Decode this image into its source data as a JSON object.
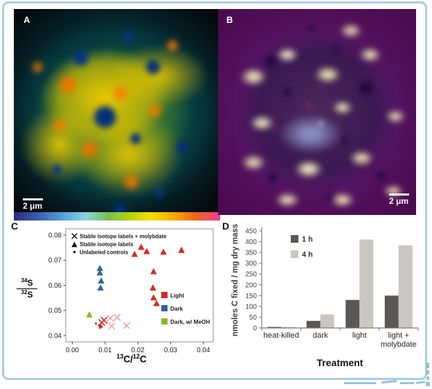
{
  "figure": {
    "panel_a": {
      "label": "A",
      "scalebar": "2 μm"
    },
    "panel_b": {
      "label": "B",
      "scalebar": "2 μm"
    },
    "panel_c": {
      "label": "C"
    },
    "panel_d": {
      "label": "D"
    }
  },
  "colorbar": {
    "stops": [
      "#282c7a",
      "#3b5eb2",
      "#58a7dd",
      "#90d2e0",
      "#74c24b",
      "#b5d311",
      "#f2e204",
      "#f7a704",
      "#f0641a",
      "#ee3e95"
    ]
  },
  "chart_data": [
    {
      "id": "panel-c-scatter",
      "type": "scatter",
      "xlabel_parts": {
        "sup1": "13",
        "mid": "C/",
        "sup2": "12",
        "tail": "C"
      },
      "ylabel_parts": {
        "num_sup": "34",
        "num_base": "S",
        "den_sup": "32",
        "den_base": "S"
      },
      "xlim": [
        -0.002,
        0.043
      ],
      "ylim": [
        0.0375,
        0.0825
      ],
      "xticks": [
        0.0,
        0.01,
        0.02,
        0.03,
        0.04
      ],
      "yticks": [
        0.04,
        0.05,
        0.06,
        0.07,
        0.08
      ],
      "grid": false,
      "marker_legend": [
        {
          "marker": "x",
          "label": "Stable isotope labels + molybdate"
        },
        {
          "marker": "triangle",
          "label": "Stable isotope labels"
        },
        {
          "marker": "dot",
          "label": "Unlabeled controls"
        }
      ],
      "color_legend": [
        {
          "color": "#d62b20",
          "label": "Light"
        },
        {
          "color": "#33659c",
          "label": "Dark"
        },
        {
          "color": "#8cb827",
          "label": "Dark, w/ MeOH"
        }
      ],
      "series": [
        {
          "name": "Light - stable isotope labels",
          "marker": "triangle",
          "color": "#d62b20",
          "size": 5,
          "points": [
            [
              0.019,
              0.0724
            ],
            [
              0.021,
              0.0752
            ],
            [
              0.0227,
              0.0735
            ],
            [
              0.0278,
              0.0733
            ],
            [
              0.0333,
              0.074
            ],
            [
              0.0248,
              0.0655
            ],
            [
              0.0246,
              0.059
            ],
            [
              0.0248,
              0.0551
            ],
            [
              0.0257,
              0.0528
            ]
          ]
        },
        {
          "name": "Dark - stable isotope labels",
          "marker": "triangle",
          "color": "#33659c",
          "size": 5,
          "points": [
            [
              0.0084,
              0.0668
            ],
            [
              0.0084,
              0.065
            ],
            [
              0.0088,
              0.0618
            ],
            [
              0.0086,
              0.059
            ]
          ]
        },
        {
          "name": "Dark w/ MeOH - stable isotope labels",
          "marker": "triangle",
          "color": "#8cb827",
          "size": 5,
          "points": [
            [
              0.0052,
              0.0483
            ]
          ]
        },
        {
          "name": "Light + molybdate",
          "marker": "x",
          "color": "#d62b20",
          "size": 4.2,
          "points": [
            [
              0.009,
              0.0452
            ],
            [
              0.0097,
              0.0461
            ]
          ]
        },
        {
          "name": "Light + molybdate (faded)",
          "marker": "x",
          "color": "#f2a49e",
          "size": 4.2,
          "points": [
            [
              0.0116,
              0.047
            ],
            [
              0.0137,
              0.0472
            ],
            [
              0.012,
              0.0438
            ],
            [
              0.0166,
              0.044
            ]
          ]
        },
        {
          "name": "Unlabeled control - dark",
          "marker": "dot",
          "color": "#33659c",
          "size": 1.6,
          "points": [
            [
              0.0072,
              0.0448
            ]
          ]
        },
        {
          "name": "Unlabeled controls - light",
          "marker": "dot",
          "color": "#d62b20",
          "size": 1.9,
          "points": [
            [
              0.0082,
              0.0441
            ],
            [
              0.0085,
              0.0432
            ]
          ]
        },
        {
          "name": "Light small triangle",
          "marker": "triangle",
          "color": "#d62b20",
          "size": 3,
          "points": [
            [
              0.0088,
              0.0438
            ]
          ]
        }
      ]
    },
    {
      "id": "panel-d-bars",
      "type": "bar",
      "ylabel": "nmoles C fixed / mg dry mass",
      "xlabel": "Treatment",
      "ylim": [
        0,
        450
      ],
      "ytick_step": 50,
      "grid": false,
      "legend_position": "top-left-inside",
      "categories": [
        [
          "heat-killed"
        ],
        [
          "dark"
        ],
        [
          "light"
        ],
        [
          "light +",
          "molybdate"
        ]
      ],
      "series": [
        {
          "name": "1 h",
          "color": "#5a5754",
          "values": [
            5,
            33,
            130,
            150
          ]
        },
        {
          "name": "4 h",
          "color": "#cac7c2",
          "values": [
            5,
            63,
            410,
            383
          ]
        }
      ]
    }
  ]
}
